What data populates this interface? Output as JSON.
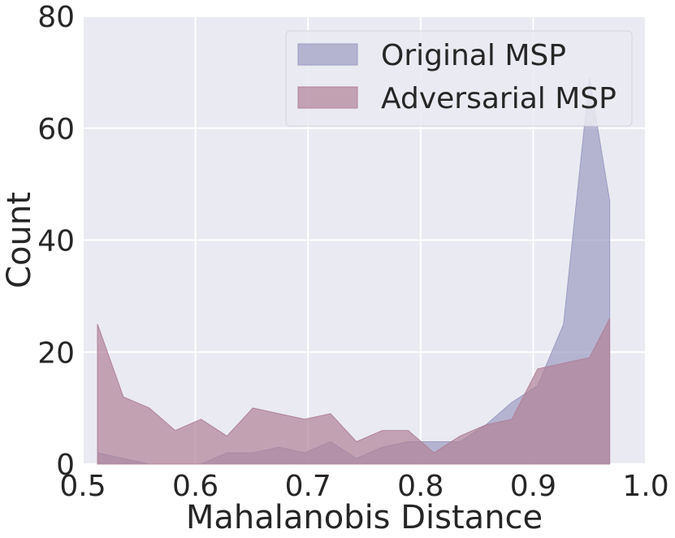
{
  "chart_data": {
    "type": "area",
    "xlabel": "Mahalanobis Distance",
    "ylabel": "Count",
    "xlim": [
      0.5,
      1.0
    ],
    "ylim": [
      0,
      80
    ],
    "xticks": [
      "0.5",
      "0.6",
      "0.7",
      "0.8",
      "0.9",
      "1.0"
    ],
    "yticks": [
      "0",
      "20",
      "40",
      "60",
      "80"
    ],
    "grid": true,
    "legend_position": "top-right",
    "series": [
      {
        "name": "Original MSP",
        "color": "#9c9cc3",
        "x": [
          0.513,
          0.536,
          0.559,
          0.582,
          0.605,
          0.628,
          0.651,
          0.674,
          0.697,
          0.72,
          0.743,
          0.766,
          0.789,
          0.812,
          0.835,
          0.858,
          0.881,
          0.904,
          0.927,
          0.95,
          0.968
        ],
        "values": [
          2,
          1,
          0,
          0,
          0,
          2,
          2,
          3,
          2,
          4,
          1,
          3,
          4,
          4,
          4,
          7,
          11,
          14,
          25,
          69,
          47
        ]
      },
      {
        "name": "Adversarial MSP",
        "color": "#b08298",
        "x": [
          0.513,
          0.536,
          0.559,
          0.582,
          0.605,
          0.628,
          0.651,
          0.674,
          0.697,
          0.72,
          0.743,
          0.766,
          0.789,
          0.812,
          0.835,
          0.858,
          0.881,
          0.904,
          0.927,
          0.95,
          0.968
        ],
        "values": [
          25,
          12,
          10,
          6,
          8,
          5,
          10,
          9,
          8,
          9,
          4,
          6,
          6,
          2,
          5,
          7,
          8,
          17,
          18,
          19,
          26
        ]
      }
    ]
  }
}
